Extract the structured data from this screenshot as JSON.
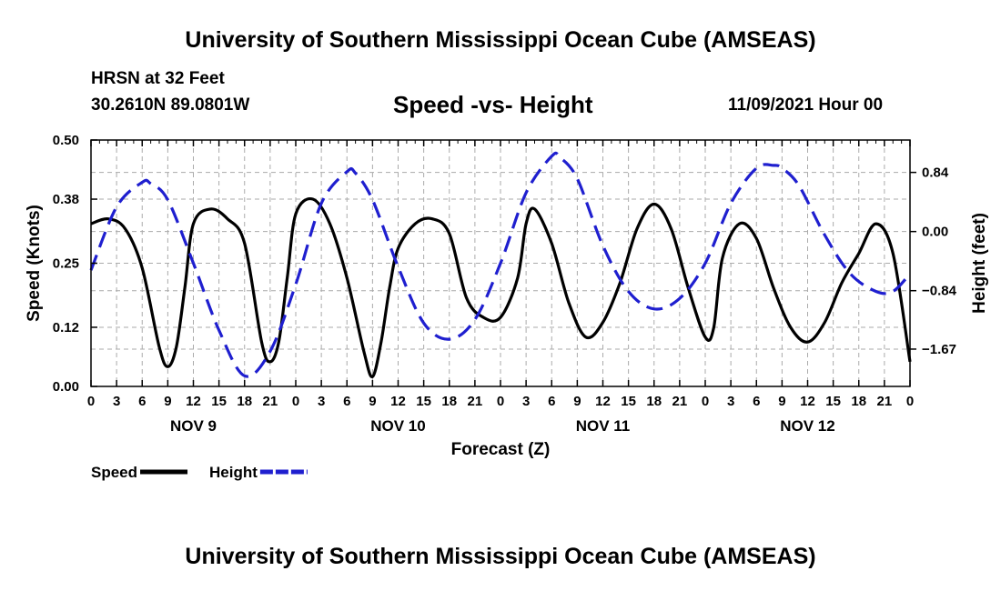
{
  "header": {
    "title": "University of Southern Mississippi Ocean Cube (AMSEAS)",
    "station": "HRSN at 32 Feet",
    "coords": "30.2610N  89.0801W",
    "subtitle": "Speed -vs- Height",
    "datetime": "11/09/2021 Hour 00",
    "bottom_title": "University of Southern Mississippi Ocean Cube (AMSEAS)"
  },
  "chart_data": {
    "type": "line",
    "title": "Speed -vs- Height",
    "xlabel": "Forecast (Z)",
    "ylabel": "Speed (Knots)",
    "y2label": "Height (feet)",
    "xlim": [
      0,
      96
    ],
    "ylim": [
      0,
      0.5
    ],
    "y2lim": [
      -2.2,
      1.3
    ],
    "x_tick_labels": [
      "0",
      "3",
      "6",
      "9",
      "12",
      "15",
      "18",
      "21",
      "0",
      "3",
      "6",
      "9",
      "12",
      "15",
      "18",
      "21",
      "0",
      "3",
      "6",
      "9",
      "12",
      "15",
      "18",
      "21",
      "0",
      "3",
      "6",
      "9",
      "12",
      "15",
      "18",
      "21",
      "0"
    ],
    "day_labels": [
      "NOV 9",
      "NOV 10",
      "NOV 11",
      "NOV 12"
    ],
    "y_ticks": [
      0.0,
      0.12,
      0.25,
      0.38,
      0.5
    ],
    "y_tick_labels": [
      "0.00",
      "0.12",
      "0.25",
      "0.38",
      "0.50"
    ],
    "y2_ticks": [
      0.84,
      0.0,
      -0.84,
      -1.67
    ],
    "y2_tick_labels": [
      "0.84",
      "0.00",
      "−0.84",
      "−1.67"
    ],
    "grid": true,
    "series": [
      {
        "name": "Speed",
        "axis": "left",
        "color": "#000000",
        "style": "solid",
        "x": [
          0,
          2,
          4,
          6,
          8,
          9,
          10,
          11,
          12,
          14,
          16,
          18,
          20,
          21,
          22,
          23,
          24,
          26,
          28,
          30,
          32,
          33,
          34,
          35,
          36,
          38,
          40,
          42,
          44,
          46,
          48,
          50,
          51,
          52,
          54,
          56,
          58,
          60,
          62,
          64,
          66,
          68,
          70,
          72,
          73,
          74,
          76,
          78,
          80,
          82,
          84,
          86,
          88,
          90,
          92,
          94,
          96
        ],
        "y": [
          0.33,
          0.34,
          0.32,
          0.24,
          0.08,
          0.04,
          0.08,
          0.2,
          0.33,
          0.36,
          0.34,
          0.29,
          0.09,
          0.05,
          0.09,
          0.22,
          0.35,
          0.38,
          0.33,
          0.22,
          0.07,
          0.02,
          0.09,
          0.2,
          0.28,
          0.33,
          0.34,
          0.31,
          0.18,
          0.14,
          0.14,
          0.22,
          0.33,
          0.36,
          0.29,
          0.17,
          0.1,
          0.13,
          0.21,
          0.32,
          0.37,
          0.32,
          0.2,
          0.1,
          0.12,
          0.26,
          0.33,
          0.3,
          0.2,
          0.12,
          0.09,
          0.13,
          0.21,
          0.27,
          0.33,
          0.27,
          0.05
        ]
      },
      {
        "name": "Height",
        "axis": "right",
        "color": "#1f1fcf",
        "style": "dashed",
        "x": [
          0,
          3,
          6,
          7,
          9,
          12,
          15,
          18,
          21,
          24,
          27,
          30,
          31,
          33,
          36,
          39,
          42,
          45,
          48,
          51,
          54,
          55,
          57,
          60,
          63,
          66,
          69,
          72,
          75,
          78,
          80,
          81,
          83,
          86,
          89,
          92,
          94,
          96
        ],
        "y": [
          -0.55,
          0.35,
          0.7,
          0.68,
          0.45,
          -0.45,
          -1.4,
          -2.05,
          -1.7,
          -0.75,
          0.4,
          0.85,
          0.83,
          0.45,
          -0.5,
          -1.3,
          -1.53,
          -1.25,
          -0.45,
          0.55,
          1.07,
          1.05,
          0.75,
          -0.2,
          -0.85,
          -1.1,
          -0.95,
          -0.45,
          0.4,
          0.9,
          0.94,
          0.9,
          0.65,
          -0.05,
          -0.6,
          -0.85,
          -0.85,
          -0.6
        ]
      }
    ],
    "legend": [
      {
        "label": "Speed",
        "color": "#000000",
        "style": "solid"
      },
      {
        "label": "Height",
        "color": "#1f1fcf",
        "style": "dashed"
      }
    ]
  }
}
